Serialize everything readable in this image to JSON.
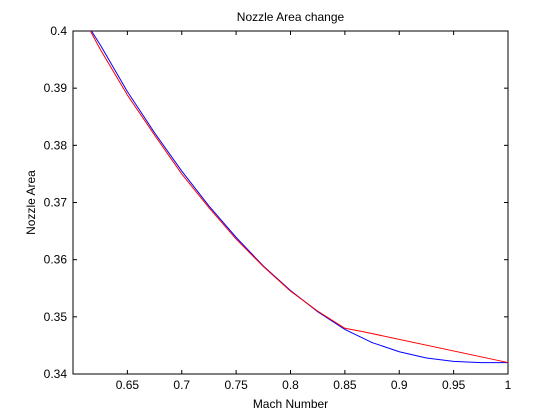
{
  "chart_data": {
    "type": "line",
    "title": "Nozzle Area change",
    "xlabel": "Mach Number",
    "ylabel": "Nozzle Area",
    "xlim": [
      0.6,
      1.0
    ],
    "ylim": [
      0.34,
      0.4
    ],
    "grid": false,
    "x_ticks": [
      0.65,
      0.7,
      0.75,
      0.8,
      0.85,
      0.9,
      0.95,
      1.0
    ],
    "x_tick_labels": [
      "0.65",
      "0.7",
      "0.75",
      "0.8",
      "0.85",
      "0.9",
      "0.95",
      "1"
    ],
    "y_ticks": [
      0.34,
      0.35,
      0.36,
      0.37,
      0.38,
      0.39,
      0.4
    ],
    "y_tick_labels": [
      "0.34",
      "0.35",
      "0.36",
      "0.37",
      "0.38",
      "0.39",
      "0.4"
    ],
    "series": [
      {
        "color": "#0000ff",
        "x": [
          0.617,
          0.625,
          0.65,
          0.675,
          0.7,
          0.725,
          0.75,
          0.775,
          0.8,
          0.825,
          0.85,
          0.875,
          0.9,
          0.925,
          0.95,
          0.975,
          1.0
        ],
        "y": [
          0.4,
          0.3976,
          0.3894,
          0.3822,
          0.3755,
          0.3694,
          0.3639,
          0.3589,
          0.3546,
          0.3509,
          0.3478,
          0.3455,
          0.3439,
          0.3428,
          0.3422,
          0.342,
          0.342
        ]
      },
      {
        "color": "#ff0000",
        "x": [
          0.616,
          0.625,
          0.65,
          0.675,
          0.7,
          0.725,
          0.75,
          0.775,
          0.8,
          0.825,
          0.85,
          0.867,
          1.0
        ],
        "y": [
          0.4,
          0.3968,
          0.3888,
          0.3818,
          0.375,
          0.3691,
          0.3636,
          0.3588,
          0.3545,
          0.351,
          0.348,
          0.3474,
          0.342
        ]
      }
    ]
  }
}
